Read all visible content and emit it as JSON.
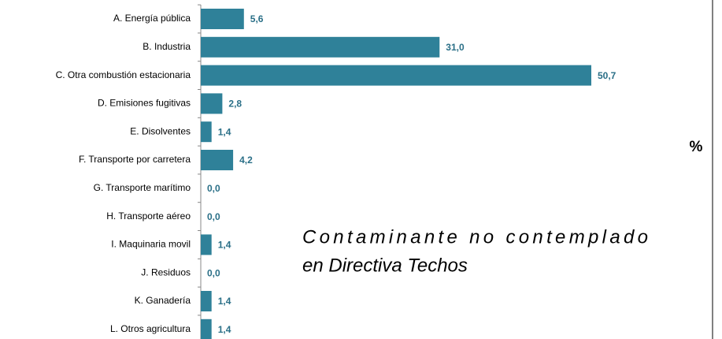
{
  "chart_data": {
    "type": "bar",
    "orientation": "horizontal",
    "categories": [
      "A. Energía pública",
      "B. Industria",
      "C. Otra combustión estacionaria",
      "D. Emisiones fugitivas",
      "E. Disolventes",
      "F. Transporte por carretera",
      "G. Transporte marítimo",
      "H. Transporte aéreo",
      "I. Maquinaria movil",
      "J. Residuos",
      "K. Ganadería",
      "L. Otros agricultura"
    ],
    "values": [
      5.6,
      31.0,
      50.7,
      2.8,
      1.4,
      4.2,
      0.0,
      0.0,
      1.4,
      0.0,
      1.4,
      1.4
    ],
    "value_labels": [
      "5,6",
      "31,0",
      "50,7",
      "2,8",
      "1,4",
      "4,2",
      "0,0",
      "0,0",
      "1,4",
      "0,0",
      "1,4",
      "1,4"
    ],
    "color": "#2f8199",
    "unit_label": "%",
    "annotation": [
      "Contaminante no contemplado",
      "en Directiva Techos"
    ]
  }
}
